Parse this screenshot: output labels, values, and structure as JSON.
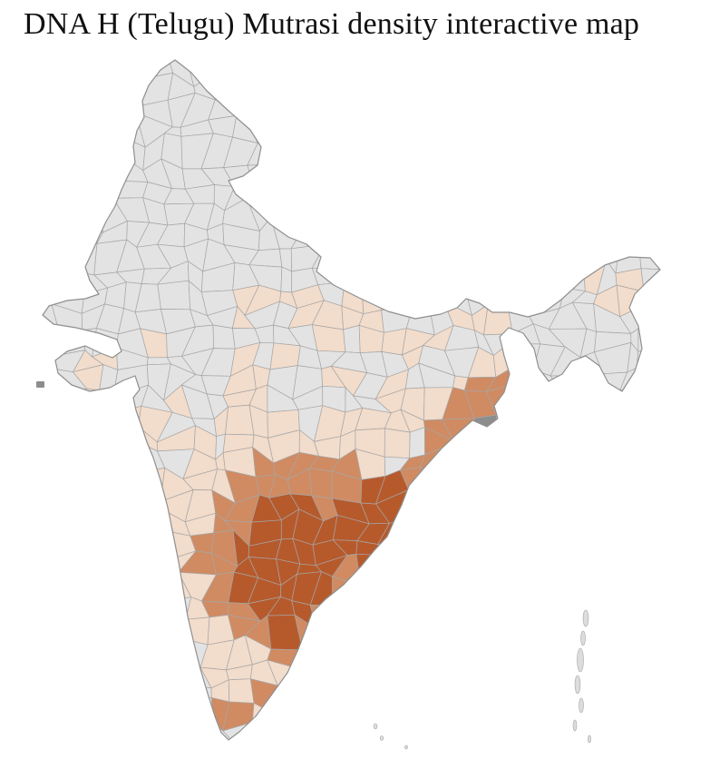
{
  "page": {
    "title": "DNA H (Telugu) Mutrasi density interactive map",
    "background_color": "#ffffff"
  },
  "map": {
    "label": "India district-level density choropleth",
    "density_levels": [
      "none",
      "low",
      "medium",
      "high"
    ],
    "colors": {
      "base": "#e3e3e3",
      "low": "#f2dccb",
      "medium": "#d08b62",
      "high": "#b65a2c",
      "city": "#8d8d8d",
      "island": "#dcdcdc",
      "border": "#a6a6a6",
      "outline": "#8f8f8f"
    }
  }
}
